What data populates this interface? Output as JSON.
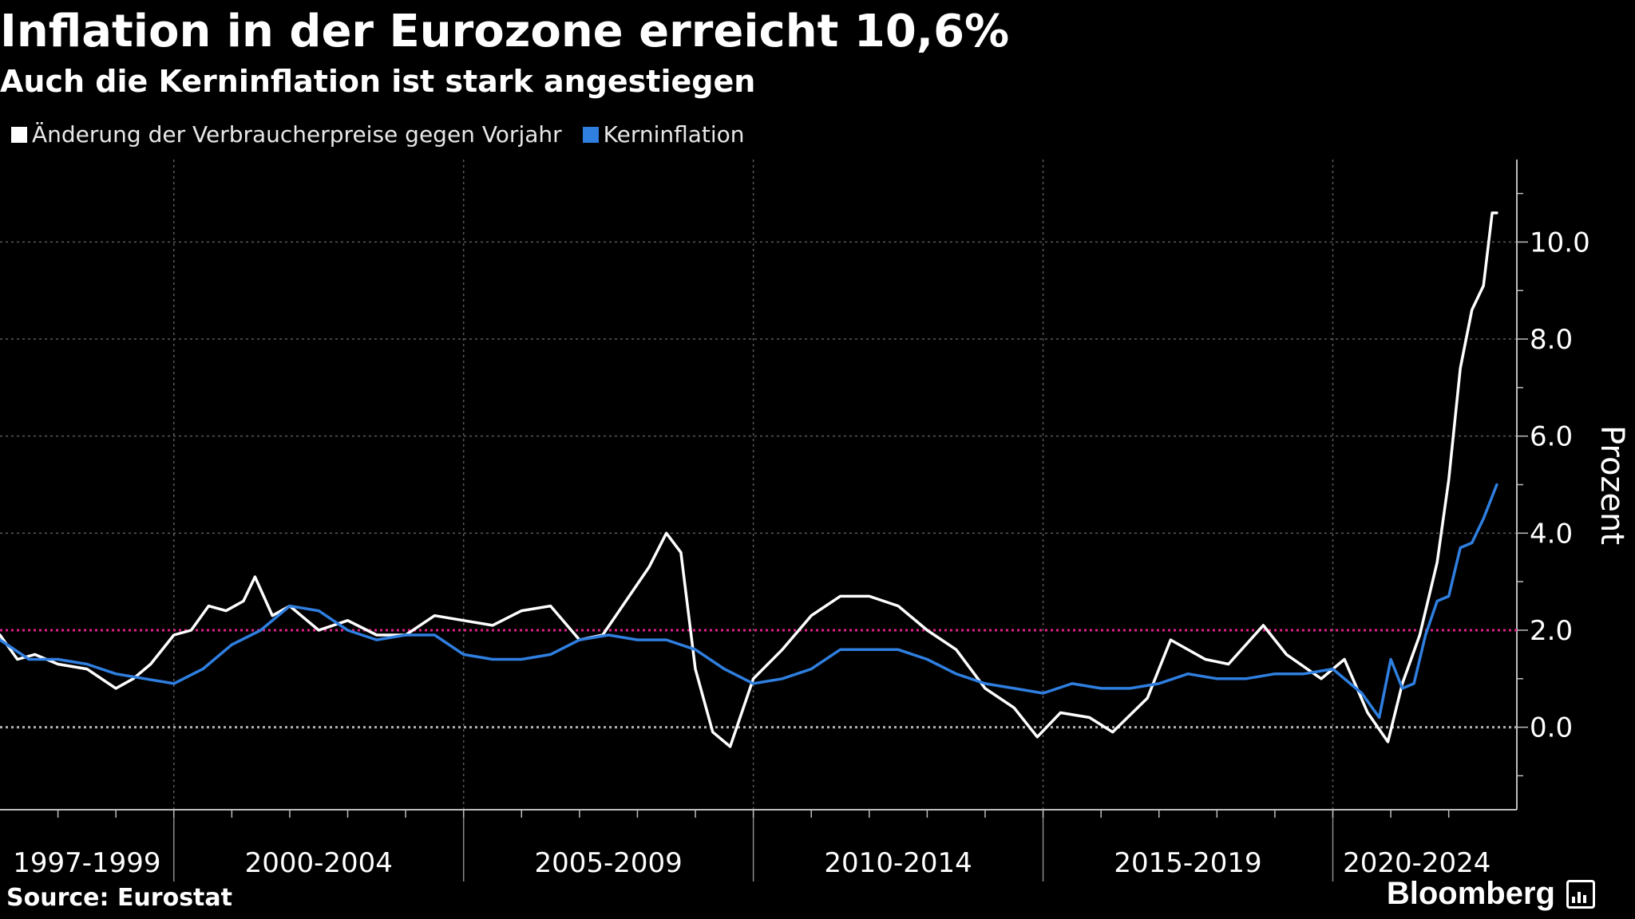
{
  "header": {
    "title": "Inflation in der Eurozone erreicht 10,6%",
    "subtitle": "Auch die Kerninflation ist stark angestiegen"
  },
  "footer": {
    "source": "Source: Eurostat",
    "brand": "Bloomberg"
  },
  "colors": {
    "background": "#000000",
    "headline_series": "#ffffff",
    "core_series": "#2f7fe0",
    "target_line": "#e0218a",
    "zero_line": "#b0b0b0",
    "grid": "#6e6e6e"
  },
  "chart_data": {
    "type": "line",
    "title": "Inflation in der Eurozone erreicht 10,6%",
    "subtitle": "Auch die Kerninflation ist stark angestiegen",
    "xlabel": "",
    "ylabel": "Prozent",
    "ylim": [
      -1.7,
      11.7
    ],
    "y_ticks": [
      0,
      2,
      4,
      6,
      8,
      10
    ],
    "y_tick_labels": [
      "0.0",
      "2.0",
      "4.0",
      "6.0",
      "8.0",
      "10.0"
    ],
    "y_axis_side": "right",
    "x_range": [
      1997.0,
      2022.9
    ],
    "x_period_boundaries": [
      2000,
      2005,
      2010,
      2015,
      2020
    ],
    "x_categories": [
      "1997-1999",
      "2000-2004",
      "2005-2009",
      "2010-2014",
      "2015-2019",
      "2020-2024"
    ],
    "reference_lines": [
      {
        "y": 2.0,
        "style": "dotted",
        "color": "#e0218a"
      },
      {
        "y": 0.0,
        "style": "dotted",
        "color": "#b0b0b0"
      }
    ],
    "legend_position": "top-left",
    "series": [
      {
        "name": "Änderung der Verbraucherpreise gegen Vorjahr",
        "color": "#ffffff",
        "x": [
          1997.0,
          1997.3,
          1997.6,
          1998.0,
          1998.5,
          1999.0,
          1999.3,
          1999.6,
          2000.0,
          2000.3,
          2000.6,
          2000.9,
          2001.2,
          2001.4,
          2001.7,
          2002.0,
          2002.5,
          2003.0,
          2003.5,
          2004.0,
          2004.5,
          2005.0,
          2005.5,
          2006.0,
          2006.5,
          2007.0,
          2007.4,
          2007.8,
          2008.2,
          2008.5,
          2008.75,
          2009.0,
          2009.3,
          2009.6,
          2010.0,
          2010.5,
          2011.0,
          2011.5,
          2012.0,
          2012.5,
          2013.0,
          2013.5,
          2014.0,
          2014.5,
          2014.9,
          2015.3,
          2015.8,
          2016.2,
          2016.8,
          2017.2,
          2017.8,
          2018.2,
          2018.8,
          2019.2,
          2019.8,
          2020.2,
          2020.6,
          2020.95,
          2021.2,
          2021.5,
          2021.8,
          2022.0,
          2022.2,
          2022.4,
          2022.6,
          2022.75,
          2022.83
        ],
        "values": [
          1.9,
          1.4,
          1.5,
          1.3,
          1.2,
          0.8,
          1.0,
          1.3,
          1.9,
          2.0,
          2.5,
          2.4,
          2.6,
          3.1,
          2.3,
          2.5,
          2.0,
          2.2,
          1.9,
          1.9,
          2.3,
          2.2,
          2.1,
          2.4,
          2.5,
          1.8,
          1.9,
          2.6,
          3.3,
          4.0,
          3.6,
          1.2,
          -0.1,
          -0.4,
          1.0,
          1.6,
          2.3,
          2.7,
          2.7,
          2.5,
          2.0,
          1.6,
          0.8,
          0.4,
          -0.2,
          0.3,
          0.2,
          -0.1,
          0.6,
          1.8,
          1.4,
          1.3,
          2.1,
          1.5,
          1.0,
          1.4,
          0.3,
          -0.3,
          0.9,
          1.9,
          3.4,
          5.1,
          7.4,
          8.6,
          9.1,
          10.6,
          10.6
        ]
      },
      {
        "name": "Kerninflation",
        "color": "#2f7fe0",
        "x": [
          1997.0,
          1997.5,
          1998.0,
          1998.5,
          1999.0,
          1999.5,
          2000.0,
          2000.5,
          2001.0,
          2001.5,
          2002.0,
          2002.5,
          2003.0,
          2003.5,
          2004.0,
          2004.5,
          2005.0,
          2005.5,
          2006.0,
          2006.5,
          2007.0,
          2007.5,
          2008.0,
          2008.5,
          2009.0,
          2009.5,
          2010.0,
          2010.5,
          2011.0,
          2011.5,
          2012.0,
          2012.5,
          2013.0,
          2013.5,
          2014.0,
          2014.5,
          2015.0,
          2015.5,
          2016.0,
          2016.5,
          2017.0,
          2017.5,
          2018.0,
          2018.5,
          2019.0,
          2019.5,
          2020.0,
          2020.5,
          2020.8,
          2021.0,
          2021.2,
          2021.4,
          2021.6,
          2021.8,
          2022.0,
          2022.2,
          2022.4,
          2022.6,
          2022.83
        ],
        "values": [
          1.8,
          1.4,
          1.4,
          1.3,
          1.1,
          1.0,
          0.9,
          1.2,
          1.7,
          2.0,
          2.5,
          2.4,
          2.0,
          1.8,
          1.9,
          1.9,
          1.5,
          1.4,
          1.4,
          1.5,
          1.8,
          1.9,
          1.8,
          1.8,
          1.6,
          1.2,
          0.9,
          1.0,
          1.2,
          1.6,
          1.6,
          1.6,
          1.4,
          1.1,
          0.9,
          0.8,
          0.7,
          0.9,
          0.8,
          0.8,
          0.9,
          1.1,
          1.0,
          1.0,
          1.1,
          1.1,
          1.2,
          0.7,
          0.2,
          1.4,
          0.8,
          0.9,
          1.9,
          2.6,
          2.7,
          3.7,
          3.8,
          4.3,
          5.0
        ]
      }
    ]
  }
}
